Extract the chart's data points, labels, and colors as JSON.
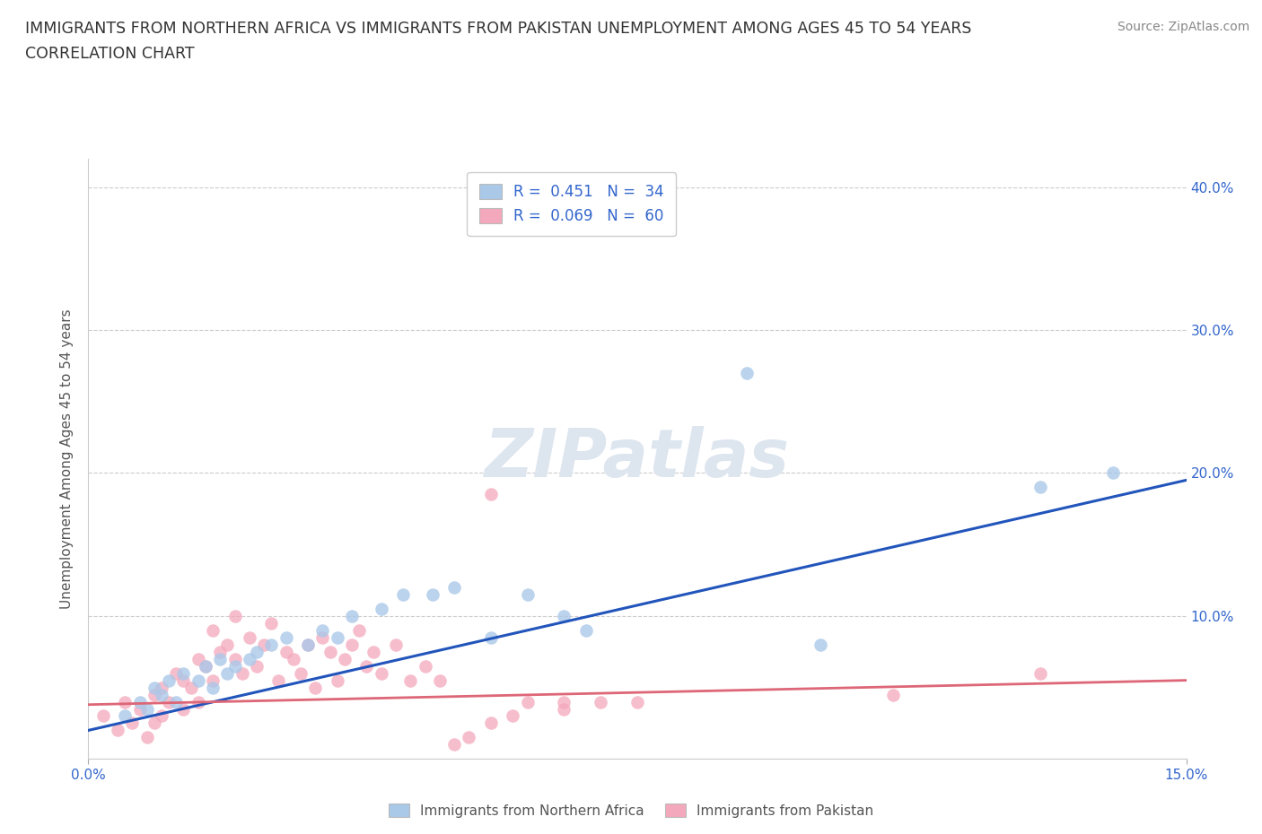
{
  "title_line1": "IMMIGRANTS FROM NORTHERN AFRICA VS IMMIGRANTS FROM PAKISTAN UNEMPLOYMENT AMONG AGES 45 TO 54 YEARS",
  "title_line2": "CORRELATION CHART",
  "source": "Source: ZipAtlas.com",
  "ylabel": "Unemployment Among Ages 45 to 54 years",
  "xlim": [
    0.0,
    0.15
  ],
  "ylim": [
    0.0,
    0.42
  ],
  "blue_R": 0.451,
  "blue_N": 34,
  "pink_R": 0.069,
  "pink_N": 60,
  "blue_color": "#aac8e8",
  "pink_color": "#f4a8bc",
  "blue_line_color": "#2255bb",
  "pink_line_color": "#dd6677",
  "legend_blue_label": "Immigrants from Northern Africa",
  "legend_pink_label": "Immigrants from Pakistan",
  "watermark": "ZIPatlas",
  "watermark_color": "#dde5ef",
  "blue_scatter_x": [
    0.005,
    0.007,
    0.008,
    0.009,
    0.01,
    0.011,
    0.012,
    0.013,
    0.015,
    0.016,
    0.017,
    0.018,
    0.019,
    0.02,
    0.022,
    0.023,
    0.025,
    0.027,
    0.03,
    0.032,
    0.034,
    0.036,
    0.04,
    0.043,
    0.047,
    0.05,
    0.055,
    0.06,
    0.065,
    0.068,
    0.09,
    0.1,
    0.13,
    0.14
  ],
  "blue_scatter_y": [
    0.03,
    0.04,
    0.035,
    0.05,
    0.045,
    0.055,
    0.04,
    0.06,
    0.055,
    0.065,
    0.05,
    0.07,
    0.06,
    0.065,
    0.07,
    0.075,
    0.08,
    0.085,
    0.08,
    0.09,
    0.085,
    0.1,
    0.105,
    0.115,
    0.115,
    0.12,
    0.085,
    0.115,
    0.1,
    0.09,
    0.27,
    0.08,
    0.19,
    0.2
  ],
  "pink_scatter_x": [
    0.002,
    0.004,
    0.005,
    0.006,
    0.007,
    0.008,
    0.009,
    0.009,
    0.01,
    0.01,
    0.011,
    0.012,
    0.013,
    0.013,
    0.014,
    0.015,
    0.015,
    0.016,
    0.017,
    0.017,
    0.018,
    0.019,
    0.02,
    0.02,
    0.021,
    0.022,
    0.023,
    0.024,
    0.025,
    0.026,
    0.027,
    0.028,
    0.029,
    0.03,
    0.031,
    0.032,
    0.033,
    0.034,
    0.035,
    0.036,
    0.037,
    0.038,
    0.039,
    0.04,
    0.042,
    0.044,
    0.046,
    0.048,
    0.05,
    0.052,
    0.055,
    0.058,
    0.06,
    0.065,
    0.07,
    0.075,
    0.055,
    0.065,
    0.11,
    0.13
  ],
  "pink_scatter_y": [
    0.03,
    0.02,
    0.04,
    0.025,
    0.035,
    0.015,
    0.045,
    0.025,
    0.05,
    0.03,
    0.04,
    0.06,
    0.035,
    0.055,
    0.05,
    0.07,
    0.04,
    0.065,
    0.055,
    0.09,
    0.075,
    0.08,
    0.07,
    0.1,
    0.06,
    0.085,
    0.065,
    0.08,
    0.095,
    0.055,
    0.075,
    0.07,
    0.06,
    0.08,
    0.05,
    0.085,
    0.075,
    0.055,
    0.07,
    0.08,
    0.09,
    0.065,
    0.075,
    0.06,
    0.08,
    0.055,
    0.065,
    0.055,
    0.01,
    0.015,
    0.025,
    0.03,
    0.04,
    0.035,
    0.04,
    0.04,
    0.185,
    0.04,
    0.045,
    0.06
  ],
  "blue_line_x0": 0.0,
  "blue_line_y0": 0.02,
  "blue_line_x1": 0.15,
  "blue_line_y1": 0.195,
  "pink_line_x0": 0.0,
  "pink_line_y0": 0.038,
  "pink_line_x1": 0.15,
  "pink_line_y1": 0.055
}
